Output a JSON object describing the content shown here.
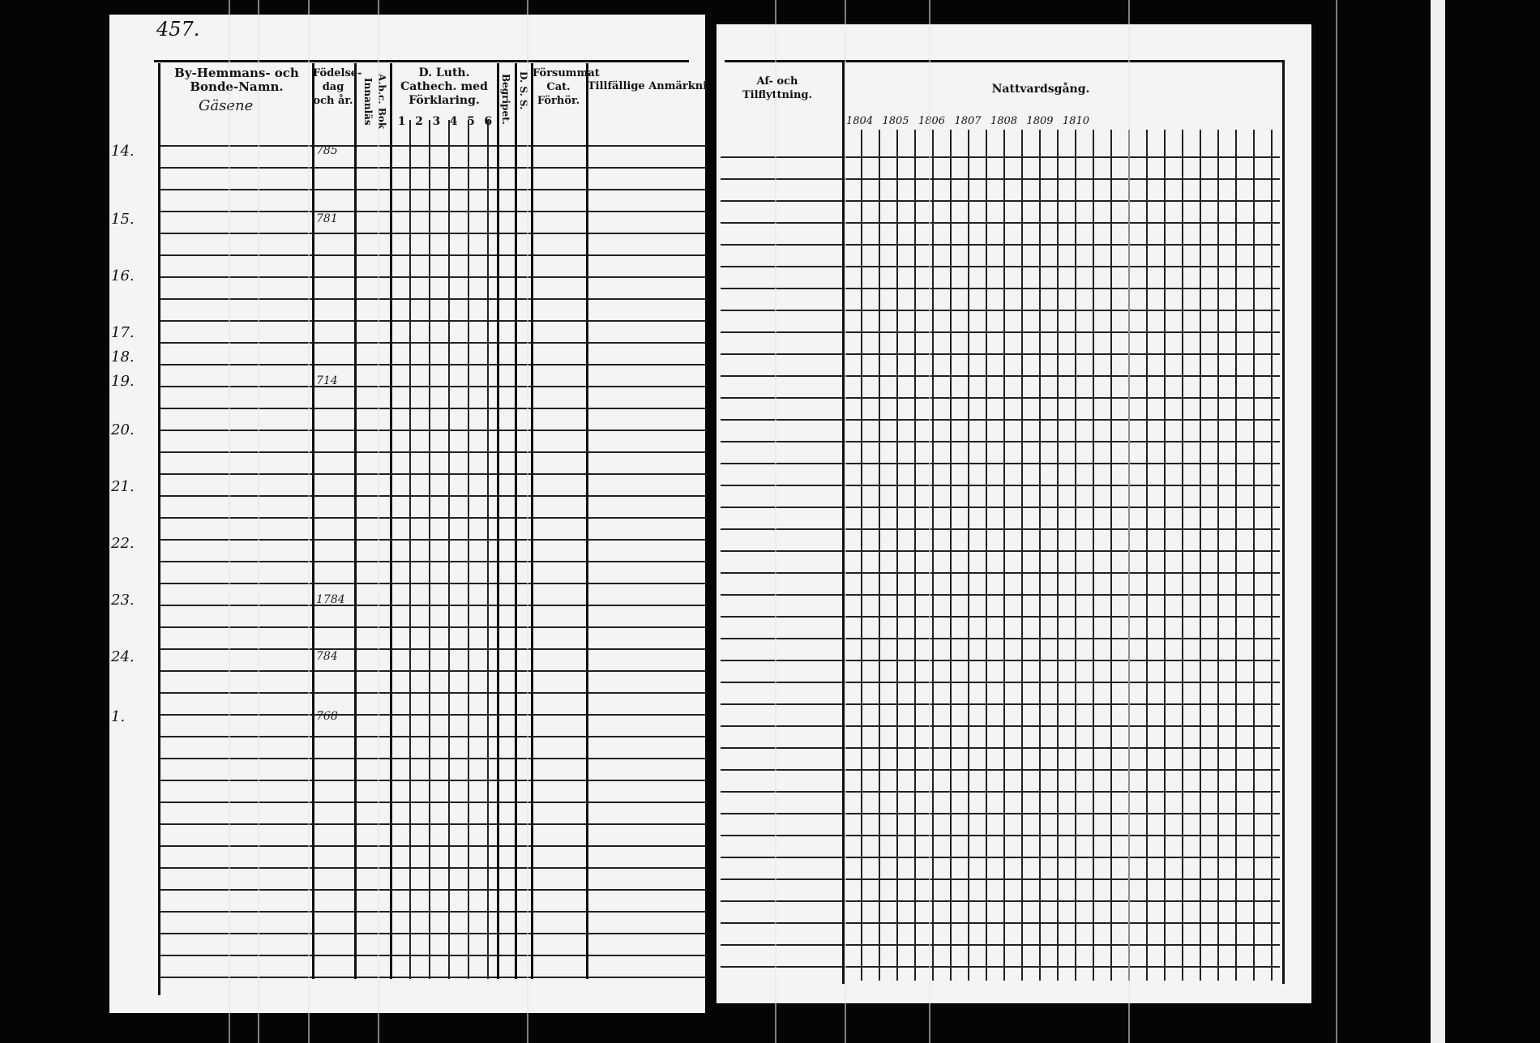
{
  "page_number": "457.",
  "left_page": {
    "headers": {
      "name": "By-Hemmans- och Bonde-Namn.",
      "village": "Gäsene",
      "birth": "Födelse-dag och år.",
      "abc": "A.b.c. Bok Innanläs",
      "cathech": "D. Luth. Cathech. med Förklaring.",
      "cathech_parts": [
        "1",
        "2",
        "3",
        "4",
        "5",
        "6"
      ],
      "begripet": "Begripet.",
      "dss": "D. S. S.",
      "forsummat": "Försummat Cat. Förhör.",
      "remarks": "Tillfällige Anmärkningar"
    },
    "rows": [
      {
        "no": "14.",
        "birth": "785"
      },
      {
        "no": "15.",
        "birth": "781"
      },
      {
        "no": "16.",
        "birth": ""
      },
      {
        "no": "17.",
        "birth": ""
      },
      {
        "no": "18.",
        "birth": ""
      },
      {
        "no": "19.",
        "birth": "714"
      },
      {
        "no": "20.",
        "birth": ""
      },
      {
        "no": "21.",
        "birth": ""
      },
      {
        "no": "22.",
        "birth": ""
      },
      {
        "no": "23.",
        "birth": "1784"
      },
      {
        "no": "24.",
        "birth": "784"
      },
      {
        "no": "1.",
        "birth": "768"
      }
    ]
  },
  "right_page": {
    "headers": {
      "moving": "Af- och Tilflyttning.",
      "communion": "Nattvardsgång.",
      "years": [
        "1804",
        "1805",
        "1806",
        "1807",
        "1808",
        "1809",
        "1810"
      ]
    }
  }
}
